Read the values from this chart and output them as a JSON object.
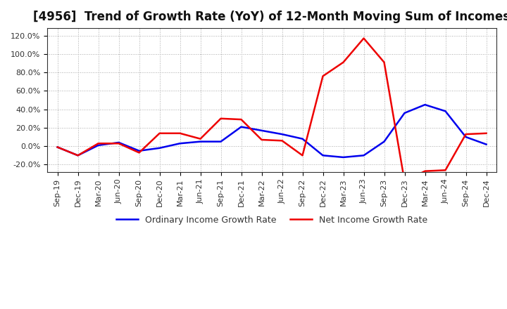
{
  "title": "[4956]  Trend of Growth Rate (YoY) of 12-Month Moving Sum of Incomes",
  "title_fontsize": 12,
  "ylim": [
    -0.28,
    1.28
  ],
  "yticks": [
    -0.2,
    0.0,
    0.2,
    0.4,
    0.6,
    0.8,
    1.0,
    1.2
  ],
  "ytick_labels": [
    "-20.0%",
    "0.0%",
    "20.0%",
    "40.0%",
    "60.0%",
    "80.0%",
    "100.0%",
    "120.0%"
  ],
  "x_labels": [
    "Sep-19",
    "Dec-19",
    "Mar-20",
    "Jun-20",
    "Sep-20",
    "Dec-20",
    "Mar-21",
    "Jun-21",
    "Sep-21",
    "Dec-21",
    "Mar-22",
    "Jun-22",
    "Sep-22",
    "Dec-22",
    "Mar-23",
    "Jun-23",
    "Sep-23",
    "Dec-23",
    "Mar-24",
    "Jun-24",
    "Sep-24",
    "Dec-24"
  ],
  "ordinary_income": [
    -0.01,
    -0.1,
    0.01,
    0.04,
    -0.05,
    -0.02,
    0.03,
    0.05,
    0.05,
    0.21,
    0.17,
    0.13,
    0.08,
    -0.1,
    -0.12,
    -0.1,
    0.05,
    0.36,
    0.45,
    0.38,
    0.1,
    0.02
  ],
  "net_income": [
    -0.01,
    -0.1,
    0.03,
    0.03,
    -0.07,
    0.14,
    0.14,
    0.08,
    0.3,
    0.29,
    0.07,
    0.06,
    -0.1,
    0.76,
    0.91,
    1.17,
    0.91,
    -0.38,
    -0.27,
    -0.26,
    0.13,
    0.14
  ],
  "ordinary_color": "#0000ee",
  "net_color": "#ee0000",
  "legend_ordinary": "Ordinary Income Growth Rate",
  "legend_net": "Net Income Growth Rate",
  "background_color": "#ffffff",
  "grid_color": "#aaaaaa",
  "line_width": 1.8,
  "tick_fontsize": 8,
  "title_color": "#111111"
}
